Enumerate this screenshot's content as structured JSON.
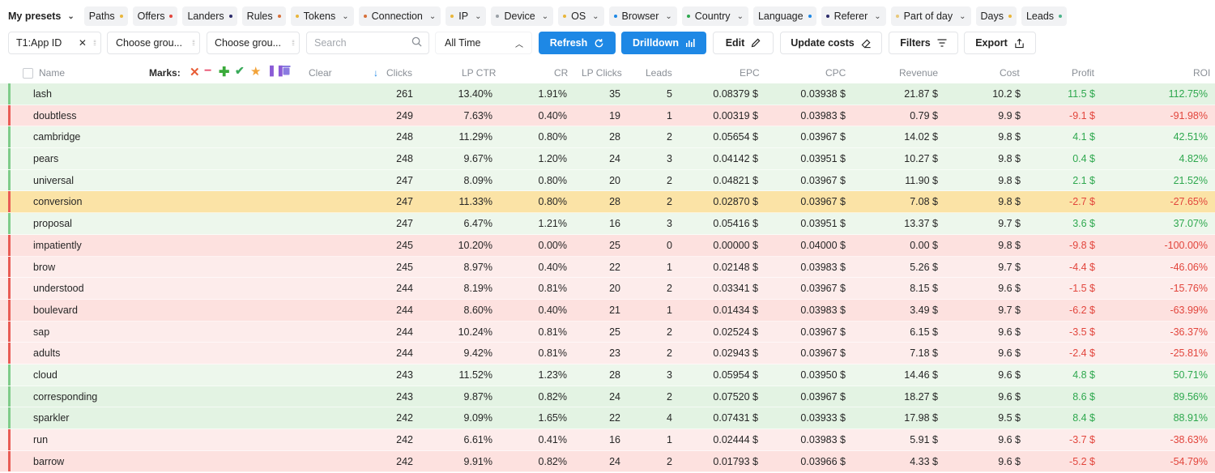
{
  "presets": {
    "title": "My presets",
    "chips": [
      {
        "label": "Paths",
        "dot_right": "#e8b53a",
        "chev": false
      },
      {
        "label": "Offers",
        "dot_right": "#e2453c",
        "chev": false
      },
      {
        "label": "Landers",
        "dot_right": "#2b2b6b",
        "chev": false
      },
      {
        "label": "Rules",
        "dot_right": "#d7703a",
        "chev": false
      },
      {
        "label": "Tokens",
        "dot_left": "#e8b53a",
        "chev": true
      },
      {
        "label": "Connection",
        "dot_left": "#d7703a",
        "chev": true
      },
      {
        "label": "IP",
        "dot_left": "#e8b53a",
        "chev": true
      },
      {
        "label": "Device",
        "dot_left": "#9aa0a6",
        "chev": true
      },
      {
        "label": "OS",
        "dot_left": "#e8b53a",
        "chev": true
      },
      {
        "label": "Browser",
        "dot_left": "#1e88e5",
        "chev": true
      },
      {
        "label": "Country",
        "dot_left": "#2ea84e",
        "chev": true
      },
      {
        "label": "Language",
        "dot_right": "#1e88e5",
        "chev": false
      },
      {
        "label": "Referer",
        "dot_left": "#2b2b6b",
        "chev": true
      },
      {
        "label": "Part of day",
        "dot_left": "#e8c87a",
        "chev": true
      },
      {
        "label": "Days",
        "dot_right": "#e8b53a",
        "chev": false
      },
      {
        "label": "Leads",
        "dot_right": "#4db38a",
        "chev": false
      }
    ]
  },
  "controls": {
    "group1": "T1:App ID",
    "group2_placeholder": "Choose grou...",
    "group3_placeholder": "Choose grou...",
    "search_placeholder": "Search",
    "period": "All Time",
    "refresh": "Refresh",
    "drilldown": "Drilldown",
    "edit": "Edit",
    "update_costs": "Update costs",
    "filters": "Filters",
    "export": "Export"
  },
  "table": {
    "headers": {
      "name": "Name",
      "marks": "Marks:",
      "clear": "Clear",
      "clicks": "Clicks",
      "lpctr": "LP CTR",
      "cr": "CR",
      "lpclicks": "LP Clicks",
      "leads": "Leads",
      "epc": "EPC",
      "cpc": "CPC",
      "revenue": "Revenue",
      "cost": "Cost",
      "profit": "Profit",
      "roi": "ROI"
    },
    "colors": {
      "green_bg": "#e3f3e3",
      "green_light_bg": "#edf7ec",
      "red_bg": "#fde1df",
      "red_light_bg": "#fdeceb",
      "yellow_bg": "#fbe3a6",
      "green_bar": "#7fcc8a",
      "red_bar": "#e85c55"
    },
    "rows": [
      {
        "name": "lash",
        "clicks": "261",
        "lpctr": "13.40%",
        "cr": "1.91%",
        "lpclicks": "35",
        "leads": "5",
        "epc": "0.08379 $",
        "cpc": "0.03938 $",
        "revenue": "21.87 $",
        "cost": "10.2 $",
        "profit": "11.5 $",
        "roi": "112.75%",
        "tone": "green",
        "sign": "pos"
      },
      {
        "name": "doubtless",
        "clicks": "249",
        "lpctr": "7.63%",
        "cr": "0.40%",
        "lpclicks": "19",
        "leads": "1",
        "epc": "0.00319 $",
        "cpc": "0.03983 $",
        "revenue": "0.79 $",
        "cost": "9.9 $",
        "profit": "-9.1 $",
        "roi": "-91.98%",
        "tone": "red",
        "sign": "neg"
      },
      {
        "name": "cambridge",
        "clicks": "248",
        "lpctr": "11.29%",
        "cr": "0.80%",
        "lpclicks": "28",
        "leads": "2",
        "epc": "0.05654 $",
        "cpc": "0.03967 $",
        "revenue": "14.02 $",
        "cost": "9.8 $",
        "profit": "4.1 $",
        "roi": "42.51%",
        "tone": "green-light",
        "sign": "pos"
      },
      {
        "name": "pears",
        "clicks": "248",
        "lpctr": "9.67%",
        "cr": "1.20%",
        "lpclicks": "24",
        "leads": "3",
        "epc": "0.04142 $",
        "cpc": "0.03951 $",
        "revenue": "10.27 $",
        "cost": "9.8 $",
        "profit": "0.4 $",
        "roi": "4.82%",
        "tone": "green-light",
        "sign": "pos"
      },
      {
        "name": "universal",
        "clicks": "247",
        "lpctr": "8.09%",
        "cr": "0.80%",
        "lpclicks": "20",
        "leads": "2",
        "epc": "0.04821 $",
        "cpc": "0.03967 $",
        "revenue": "11.90 $",
        "cost": "9.8 $",
        "profit": "2.1 $",
        "roi": "21.52%",
        "tone": "green-light",
        "sign": "pos"
      },
      {
        "name": "conversion",
        "clicks": "247",
        "lpctr": "11.33%",
        "cr": "0.80%",
        "lpclicks": "28",
        "leads": "2",
        "epc": "0.02870 $",
        "cpc": "0.03967 $",
        "revenue": "7.08 $",
        "cost": "9.8 $",
        "profit": "-2.7 $",
        "roi": "-27.65%",
        "tone": "yellow",
        "sign": "neg"
      },
      {
        "name": "proposal",
        "clicks": "247",
        "lpctr": "6.47%",
        "cr": "1.21%",
        "lpclicks": "16",
        "leads": "3",
        "epc": "0.05416 $",
        "cpc": "0.03951 $",
        "revenue": "13.37 $",
        "cost": "9.7 $",
        "profit": "3.6 $",
        "roi": "37.07%",
        "tone": "green-light",
        "sign": "pos"
      },
      {
        "name": "impatiently",
        "clicks": "245",
        "lpctr": "10.20%",
        "cr": "0.00%",
        "lpclicks": "25",
        "leads": "0",
        "epc": "0.00000 $",
        "cpc": "0.04000 $",
        "revenue": "0.00 $",
        "cost": "9.8 $",
        "profit": "-9.8 $",
        "roi": "-100.00%",
        "tone": "red",
        "sign": "neg"
      },
      {
        "name": "brow",
        "clicks": "245",
        "lpctr": "8.97%",
        "cr": "0.40%",
        "lpclicks": "22",
        "leads": "1",
        "epc": "0.02148 $",
        "cpc": "0.03983 $",
        "revenue": "5.26 $",
        "cost": "9.7 $",
        "profit": "-4.4 $",
        "roi": "-46.06%",
        "tone": "red-light",
        "sign": "neg"
      },
      {
        "name": "understood",
        "clicks": "244",
        "lpctr": "8.19%",
        "cr": "0.81%",
        "lpclicks": "20",
        "leads": "2",
        "epc": "0.03341 $",
        "cpc": "0.03967 $",
        "revenue": "8.15 $",
        "cost": "9.6 $",
        "profit": "-1.5 $",
        "roi": "-15.76%",
        "tone": "red-light",
        "sign": "neg"
      },
      {
        "name": "boulevard",
        "clicks": "244",
        "lpctr": "8.60%",
        "cr": "0.40%",
        "lpclicks": "21",
        "leads": "1",
        "epc": "0.01434 $",
        "cpc": "0.03983 $",
        "revenue": "3.49 $",
        "cost": "9.7 $",
        "profit": "-6.2 $",
        "roi": "-63.99%",
        "tone": "red",
        "sign": "neg"
      },
      {
        "name": "sap",
        "clicks": "244",
        "lpctr": "10.24%",
        "cr": "0.81%",
        "lpclicks": "25",
        "leads": "2",
        "epc": "0.02524 $",
        "cpc": "0.03967 $",
        "revenue": "6.15 $",
        "cost": "9.6 $",
        "profit": "-3.5 $",
        "roi": "-36.37%",
        "tone": "red-light",
        "sign": "neg"
      },
      {
        "name": "adults",
        "clicks": "244",
        "lpctr": "9.42%",
        "cr": "0.81%",
        "lpclicks": "23",
        "leads": "2",
        "epc": "0.02943 $",
        "cpc": "0.03967 $",
        "revenue": "7.18 $",
        "cost": "9.6 $",
        "profit": "-2.4 $",
        "roi": "-25.81%",
        "tone": "red-light",
        "sign": "neg"
      },
      {
        "name": "cloud",
        "clicks": "243",
        "lpctr": "11.52%",
        "cr": "1.23%",
        "lpclicks": "28",
        "leads": "3",
        "epc": "0.05954 $",
        "cpc": "0.03950 $",
        "revenue": "14.46 $",
        "cost": "9.6 $",
        "profit": "4.8 $",
        "roi": "50.71%",
        "tone": "green-light",
        "sign": "pos"
      },
      {
        "name": "corresponding",
        "clicks": "243",
        "lpctr": "9.87%",
        "cr": "0.82%",
        "lpclicks": "24",
        "leads": "2",
        "epc": "0.07520 $",
        "cpc": "0.03967 $",
        "revenue": "18.27 $",
        "cost": "9.6 $",
        "profit": "8.6 $",
        "roi": "89.56%",
        "tone": "green",
        "sign": "pos"
      },
      {
        "name": "sparkler",
        "clicks": "242",
        "lpctr": "9.09%",
        "cr": "1.65%",
        "lpclicks": "22",
        "leads": "4",
        "epc": "0.07431 $",
        "cpc": "0.03933 $",
        "revenue": "17.98 $",
        "cost": "9.5 $",
        "profit": "8.4 $",
        "roi": "88.91%",
        "tone": "green",
        "sign": "pos"
      },
      {
        "name": "run",
        "clicks": "242",
        "lpctr": "6.61%",
        "cr": "0.41%",
        "lpclicks": "16",
        "leads": "1",
        "epc": "0.02444 $",
        "cpc": "0.03983 $",
        "revenue": "5.91 $",
        "cost": "9.6 $",
        "profit": "-3.7 $",
        "roi": "-38.63%",
        "tone": "red-light",
        "sign": "neg"
      },
      {
        "name": "barrow",
        "clicks": "242",
        "lpctr": "9.91%",
        "cr": "0.82%",
        "lpclicks": "24",
        "leads": "2",
        "epc": "0.01793 $",
        "cpc": "0.03966 $",
        "revenue": "4.33 $",
        "cost": "9.6 $",
        "profit": "-5.2 $",
        "roi": "-54.79%",
        "tone": "red",
        "sign": "neg"
      }
    ]
  }
}
